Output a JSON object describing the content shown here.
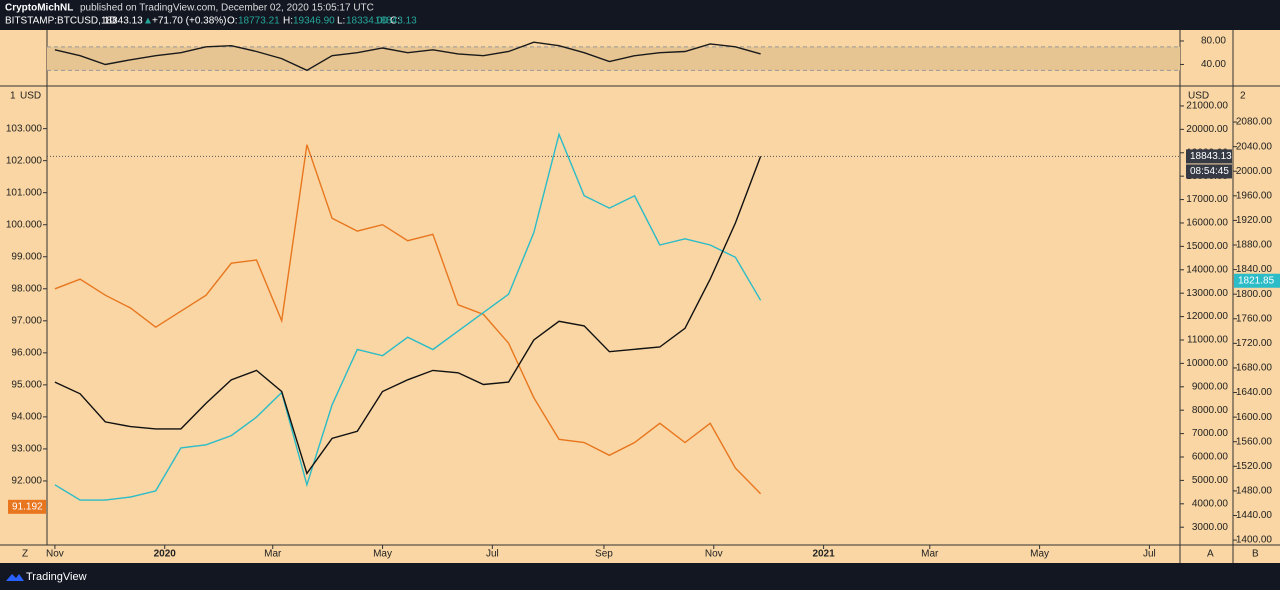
{
  "header": {
    "author": "CryptoMichNL",
    "published": "published on TradingView.com, December 02, 2020 15:05:17 UTC",
    "symbol": "BITSTAMP:BTCUSD, 1D",
    "last": "18843.13",
    "arrow": "▲",
    "change": "+71.70 (+0.38%)",
    "open_label": "O:",
    "open": "18773.21",
    "high_label": "H:",
    "high": "19346.90",
    "low_label": "L:",
    "low": "18334.00",
    "close_label": "C:",
    "close": "18843.13"
  },
  "chart_data": [
    {
      "type": "line",
      "band": [
        30,
        70
      ],
      "ylim": [
        5,
        97
      ],
      "yticks": [
        {
          "value": 80,
          "label": "80.00"
        },
        {
          "value": 40,
          "label": "40.00"
        }
      ],
      "xlim": [
        -4.4,
        625
      ],
      "x": [
        0,
        14,
        28,
        42,
        56,
        70,
        84,
        98,
        112,
        126,
        140,
        154,
        168,
        182,
        196,
        210,
        224,
        238,
        252,
        266,
        280,
        294,
        308,
        322,
        336,
        350,
        364,
        378,
        392
      ],
      "series": [
        {
          "color": "#1a1a1a",
          "values": [
            65,
            55,
            40,
            48,
            55,
            60,
            70,
            72,
            62,
            50,
            30,
            55,
            60,
            68,
            60,
            65,
            58,
            55,
            62,
            78,
            72,
            60,
            45,
            55,
            60,
            62,
            75,
            70,
            58
          ]
        }
      ]
    },
    {
      "type": "line",
      "left_unit": "USD",
      "right_unit": "USD",
      "corner_left": "1",
      "corner_right": "2",
      "scale_left": "Z",
      "scale_a": "A",
      "scale_b": "B",
      "xlim": [
        -4.4,
        625
      ],
      "xticks": [
        {
          "value": 0,
          "label": "Nov"
        },
        {
          "value": 61,
          "label": "2020"
        },
        {
          "value": 121,
          "label": "Mar"
        },
        {
          "value": 182,
          "label": "May"
        },
        {
          "value": 243,
          "label": "Jul"
        },
        {
          "value": 305,
          "label": "Sep"
        },
        {
          "value": 366,
          "label": "Nov"
        },
        {
          "value": 427,
          "label": "2021"
        },
        {
          "value": 486,
          "label": "Mar"
        },
        {
          "value": 547,
          "label": "May"
        },
        {
          "value": 608,
          "label": "Jul"
        }
      ],
      "ylim": [
        90,
        104.3
      ],
      "yticks": [
        {
          "value": 92,
          "label": "92.000"
        },
        {
          "value": 93,
          "label": "93.000"
        },
        {
          "value": 94,
          "label": "94.000"
        },
        {
          "value": 95,
          "label": "95.000"
        },
        {
          "value": 96,
          "label": "96.000"
        },
        {
          "value": 97,
          "label": "97.000"
        },
        {
          "value": 98,
          "label": "98.000"
        },
        {
          "value": 99,
          "label": "99.000"
        },
        {
          "value": 100,
          "label": "100.000"
        },
        {
          "value": 101,
          "label": "101.000"
        },
        {
          "value": 102,
          "label": "102.000"
        },
        {
          "value": 103,
          "label": "103.000"
        }
      ],
      "y2lim": [
        2240,
        21810
      ],
      "y2ticks": [
        {
          "value": 3000,
          "label": "3000.00"
        },
        {
          "value": 4000,
          "label": "4000.00"
        },
        {
          "value": 5000,
          "label": "5000.00"
        },
        {
          "value": 6000,
          "label": "6000.00"
        },
        {
          "value": 7000,
          "label": "7000.00"
        },
        {
          "value": 8000,
          "label": "8000.00"
        },
        {
          "value": 9000,
          "label": "9000.00"
        },
        {
          "value": 10000,
          "label": "10000.00"
        },
        {
          "value": 11000,
          "label": "11000.00"
        },
        {
          "value": 12000,
          "label": "12000.00"
        },
        {
          "value": 13000,
          "label": "13000.00"
        },
        {
          "value": 14000,
          "label": "14000.00"
        },
        {
          "value": 15000,
          "label": "15000.00"
        },
        {
          "value": 16000,
          "label": "16000.00"
        },
        {
          "value": 17000,
          "label": "17000.00"
        },
        {
          "value": 18000,
          "label": "18000.00"
        },
        {
          "value": 19000,
          "label": "19000.00"
        },
        {
          "value": 20000,
          "label": "20000.00"
        },
        {
          "value": 21000,
          "label": "21000.00"
        }
      ],
      "y3lim": [
        1392,
        2137
      ],
      "y3ticks": [
        {
          "value": 1400,
          "label": "1400.00"
        },
        {
          "value": 1440,
          "label": "1440.00"
        },
        {
          "value": 1480,
          "label": "1480.00"
        },
        {
          "value": 1520,
          "label": "1520.00"
        },
        {
          "value": 1560,
          "label": "1560.00"
        },
        {
          "value": 1600,
          "label": "1600.00"
        },
        {
          "value": 1640,
          "label": "1640.00"
        },
        {
          "value": 1680,
          "label": "1680.00"
        },
        {
          "value": 1720,
          "label": "1720.00"
        },
        {
          "value": 1760,
          "label": "1760.00"
        },
        {
          "value": 1800,
          "label": "1800.00"
        },
        {
          "value": 1840,
          "label": "1840.00"
        },
        {
          "value": 1880,
          "label": "1880.00"
        },
        {
          "value": 1920,
          "label": "1920.00"
        },
        {
          "value": 1960,
          "label": "1960.00"
        },
        {
          "value": 2000,
          "label": "2000.00"
        },
        {
          "value": 2040,
          "label": "2040.00"
        },
        {
          "value": 2080,
          "label": "2080.00"
        }
      ],
      "x": [
        0,
        14,
        28,
        42,
        56,
        70,
        84,
        98,
        112,
        126,
        140,
        154,
        168,
        182,
        196,
        210,
        224,
        238,
        252,
        266,
        280,
        294,
        308,
        322,
        336,
        350,
        364,
        378,
        392
      ],
      "series": [
        {
          "color": "#e8761f",
          "axis": "y",
          "values": [
            98.0,
            98.3,
            97.8,
            97.4,
            96.8,
            97.3,
            97.8,
            98.8,
            98.9,
            97.0,
            102.5,
            100.2,
            99.8,
            100.0,
            99.5,
            99.7,
            97.5,
            97.2,
            96.3,
            94.6,
            93.3,
            93.2,
            92.8,
            93.2,
            93.8,
            93.2,
            93.8,
            92.4,
            91.6
          ]
        },
        {
          "color": "#2bbcc8",
          "axis": "y3",
          "values": [
            1490,
            1465,
            1465,
            1470,
            1480,
            1550,
            1555,
            1570,
            1600,
            1640,
            1490,
            1620,
            1710,
            1700,
            1730,
            1710,
            1740,
            1770,
            1800,
            1900,
            2060,
            1960,
            1940,
            1960,
            1880,
            1890,
            1880,
            1860,
            1790
          ]
        },
        {
          "color": "#111111",
          "axis": "y2",
          "values": [
            9200,
            8700,
            7500,
            7300,
            7200,
            7200,
            8300,
            9300,
            9700,
            8800,
            5300,
            6800,
            7100,
            8800,
            9300,
            9700,
            9600,
            9100,
            9200,
            11000,
            11800,
            11600,
            10500,
            10600,
            10700,
            11500,
            13600,
            16000,
            18843
          ]
        }
      ],
      "annotations": [
        {
          "axis": "y2",
          "value": 18843.13,
          "label": "18843.13",
          "color": "#363a45"
        },
        {
          "axis": "y3",
          "value": 1821.85,
          "label": "1821.85",
          "color": "#2bbcc8"
        },
        {
          "axis": "y",
          "value": 91.192,
          "label": "91.192",
          "color": "#e8761f"
        }
      ],
      "countdown": "08:54:45"
    }
  ],
  "footer": {
    "brand": "TradingView"
  }
}
